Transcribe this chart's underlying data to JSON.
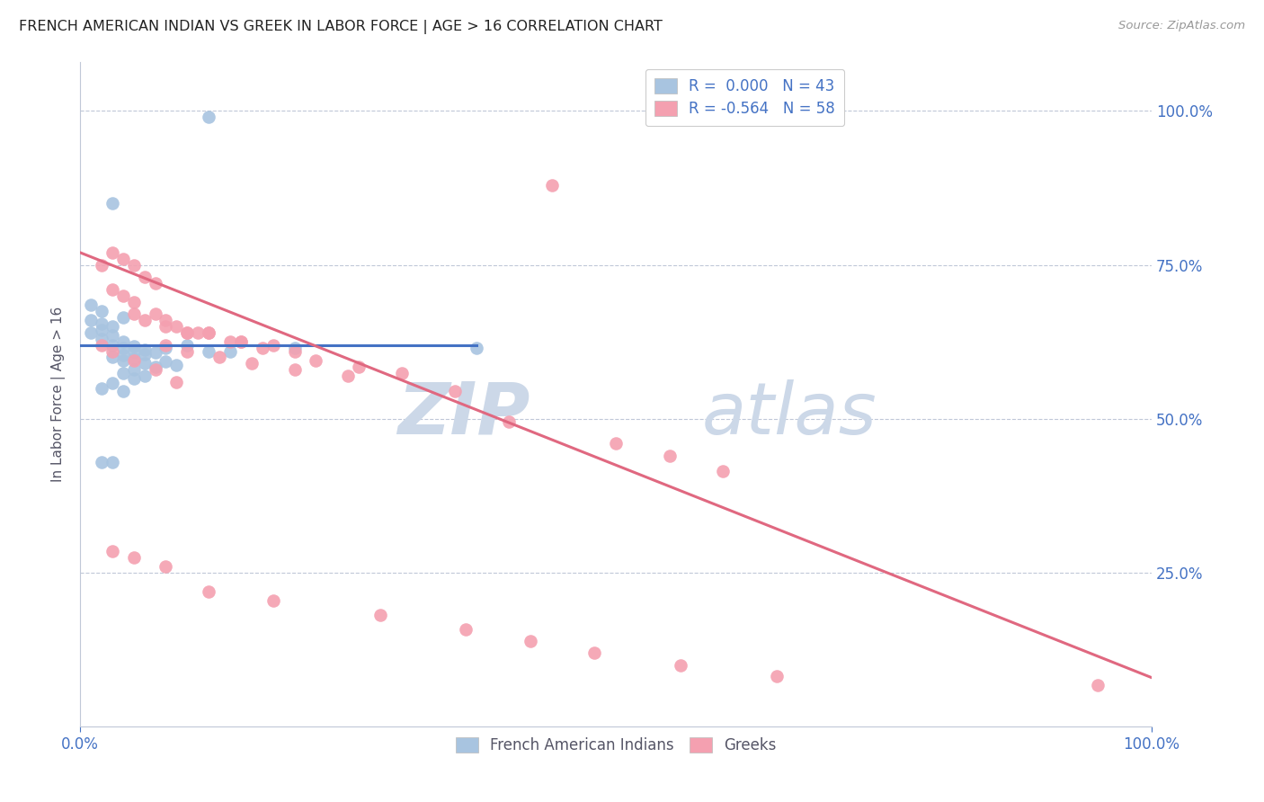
{
  "title": "FRENCH AMERICAN INDIAN VS GREEK IN LABOR FORCE | AGE > 16 CORRELATION CHART",
  "source": "Source: ZipAtlas.com",
  "ylabel": "In Labor Force | Age > 16",
  "ytick_labels": [
    "100.0%",
    "75.0%",
    "50.0%",
    "25.0%"
  ],
  "ytick_values": [
    1.0,
    0.75,
    0.5,
    0.25
  ],
  "xlim": [
    0.0,
    1.0
  ],
  "ylim": [
    0.0,
    1.08
  ],
  "legend_blue_r": "R =  0.000",
  "legend_blue_n": "N = 43",
  "legend_pink_r": "R = -0.564",
  "legend_pink_n": "N = 58",
  "blue_color": "#a8c4e0",
  "pink_color": "#f4a0b0",
  "blue_line_color": "#4472c4",
  "pink_line_color": "#e06880",
  "watermark_zip": "ZIP",
  "watermark_atlas": "atlas",
  "watermark_color": "#ccd8e8",
  "background_color": "#ffffff",
  "blue_scatter_x": [
    0.12,
    0.03,
    0.01,
    0.02,
    0.04,
    0.01,
    0.02,
    0.03,
    0.02,
    0.01,
    0.03,
    0.02,
    0.04,
    0.03,
    0.05,
    0.04,
    0.06,
    0.05,
    0.07,
    0.06,
    0.04,
    0.03,
    0.05,
    0.04,
    0.08,
    0.06,
    0.09,
    0.07,
    0.1,
    0.08,
    0.05,
    0.04,
    0.06,
    0.05,
    0.03,
    0.02,
    0.04,
    0.03,
    0.14,
    0.12,
    0.2,
    0.37,
    0.02
  ],
  "blue_scatter_y": [
    0.99,
    0.85,
    0.685,
    0.675,
    0.665,
    0.66,
    0.655,
    0.65,
    0.645,
    0.64,
    0.635,
    0.63,
    0.625,
    0.62,
    0.618,
    0.615,
    0.612,
    0.61,
    0.608,
    0.605,
    0.603,
    0.6,
    0.598,
    0.595,
    0.593,
    0.59,
    0.588,
    0.585,
    0.62,
    0.615,
    0.58,
    0.575,
    0.57,
    0.565,
    0.558,
    0.55,
    0.545,
    0.43,
    0.61,
    0.61,
    0.615,
    0.615,
    0.43
  ],
  "pink_scatter_x": [
    0.44,
    0.02,
    0.03,
    0.04,
    0.05,
    0.06,
    0.07,
    0.03,
    0.04,
    0.05,
    0.07,
    0.08,
    0.1,
    0.05,
    0.06,
    0.08,
    0.1,
    0.12,
    0.15,
    0.12,
    0.15,
    0.18,
    0.09,
    0.11,
    0.14,
    0.17,
    0.2,
    0.08,
    0.1,
    0.13,
    0.16,
    0.2,
    0.25,
    0.22,
    0.26,
    0.3,
    0.35,
    0.02,
    0.03,
    0.05,
    0.07,
    0.09,
    0.4,
    0.5,
    0.55,
    0.6,
    0.95,
    0.03,
    0.05,
    0.08,
    0.12,
    0.18,
    0.28,
    0.36,
    0.42,
    0.48,
    0.56,
    0.65
  ],
  "pink_scatter_y": [
    0.88,
    0.75,
    0.77,
    0.76,
    0.75,
    0.73,
    0.72,
    0.71,
    0.7,
    0.69,
    0.67,
    0.66,
    0.64,
    0.67,
    0.66,
    0.65,
    0.64,
    0.64,
    0.625,
    0.64,
    0.625,
    0.62,
    0.65,
    0.64,
    0.625,
    0.615,
    0.61,
    0.62,
    0.61,
    0.6,
    0.59,
    0.58,
    0.57,
    0.595,
    0.585,
    0.575,
    0.545,
    0.62,
    0.61,
    0.595,
    0.58,
    0.56,
    0.495,
    0.46,
    0.44,
    0.415,
    0.068,
    0.285,
    0.275,
    0.26,
    0.22,
    0.205,
    0.182,
    0.158,
    0.14,
    0.12,
    0.1,
    0.082
  ],
  "blue_line_x": [
    0.0,
    0.37
  ],
  "blue_line_y": [
    0.62,
    0.62
  ],
  "pink_line_x": [
    0.0,
    1.0
  ],
  "pink_line_y": [
    0.77,
    0.08
  ]
}
